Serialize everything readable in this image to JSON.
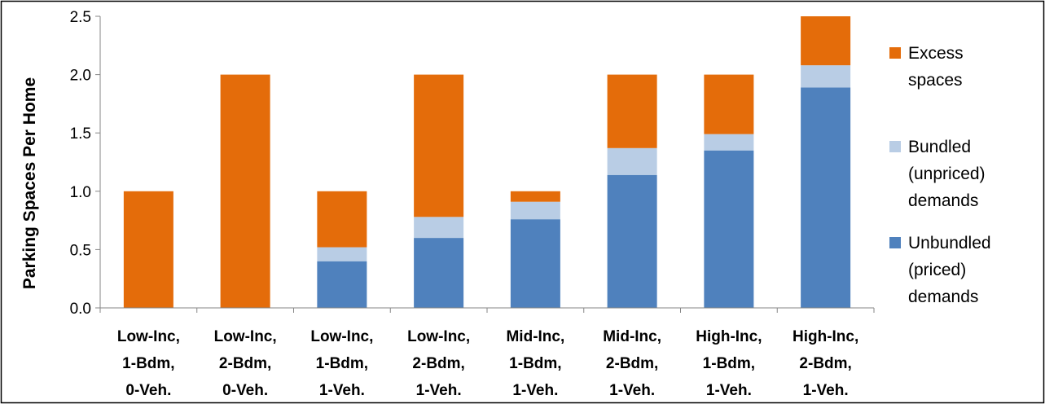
{
  "chart_data": {
    "type": "bar",
    "stacked": true,
    "title": "",
    "xlabel": "",
    "ylabel": "Parking Spaces Per Home",
    "ylim": [
      0,
      2.5
    ],
    "yticks": [
      "0.0",
      "0.5",
      "1.0",
      "1.5",
      "2.0",
      "2.5"
    ],
    "grid": false,
    "legend_position": "right",
    "categories": [
      [
        "Low-Inc,",
        "1-Bdm,",
        "0-Veh."
      ],
      [
        "Low-Inc,",
        "2-Bdm,",
        "0-Veh."
      ],
      [
        "Low-Inc,",
        "1-Bdm,",
        "1-Veh."
      ],
      [
        "Low-Inc,",
        "2-Bdm,",
        "1-Veh."
      ],
      [
        "Mid-Inc,",
        "1-Bdm,",
        "1-Veh."
      ],
      [
        "Mid-Inc,",
        "2-Bdm,",
        "1-Veh."
      ],
      [
        "High-Inc,",
        "1-Bdm,",
        "1-Veh."
      ],
      [
        "High-Inc,",
        "2-Bdm,",
        "1-Veh."
      ]
    ],
    "series": [
      {
        "name": "Unbundled (priced) demands",
        "legend_lines": [
          "Unbundled",
          "(priced)",
          "demands"
        ],
        "color": "#4f81bd",
        "values": [
          0,
          0,
          0.4,
          0.6,
          0.76,
          1.14,
          1.35,
          1.89
        ]
      },
      {
        "name": "Bundled (unpriced) demands",
        "legend_lines": [
          "Bundled",
          "(unpriced)",
          "demands"
        ],
        "color": "#b9cde5",
        "values": [
          0,
          0,
          0.12,
          0.18,
          0.15,
          0.23,
          0.14,
          0.19
        ]
      },
      {
        "name": "Excess spaces",
        "legend_lines": [
          "Excess",
          "spaces"
        ],
        "color": "#e46c0a",
        "values": [
          1.0,
          2.0,
          0.48,
          1.22,
          0.09,
          0.63,
          0.51,
          0.42
        ]
      }
    ]
  }
}
